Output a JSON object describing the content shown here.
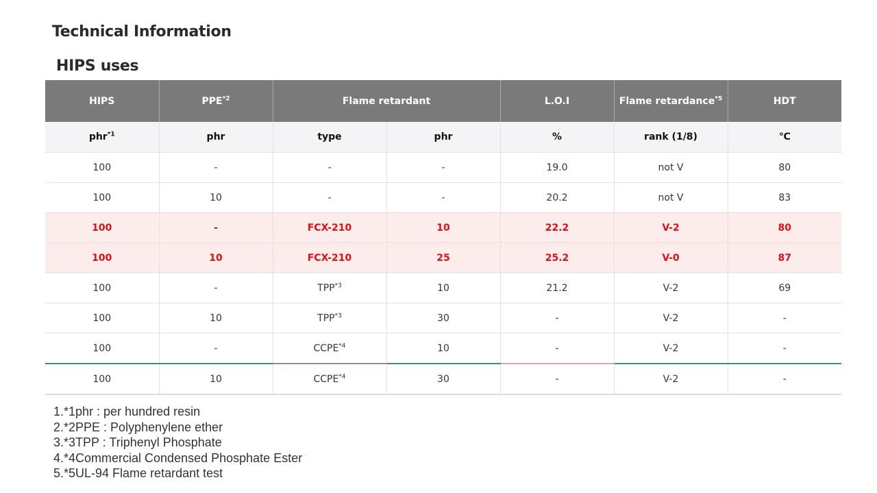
{
  "page_title": "Technical Information",
  "section_title": "HIPS uses",
  "table": {
    "header1": [
      {
        "label": "HIPS",
        "sup": ""
      },
      {
        "label": "PPE",
        "sup": "*2"
      },
      {
        "label": "Flame retardant",
        "sup": ""
      },
      {
        "label": "L.O.I",
        "sup": ""
      },
      {
        "label": "Flame retardance",
        "sup": "*5"
      },
      {
        "label": "HDT",
        "sup": ""
      }
    ],
    "header2": [
      {
        "label": "phr",
        "sup": "*1"
      },
      {
        "label": "phr",
        "sup": ""
      },
      {
        "label": "type",
        "sup": ""
      },
      {
        "label": "phr",
        "sup": ""
      },
      {
        "label": "%",
        "sup": ""
      },
      {
        "label": "rank (1/8)",
        "sup": ""
      },
      {
        "label": "℃",
        "sup": ""
      }
    ],
    "rows": [
      {
        "cells": [
          {
            "v": "100",
            "s": ""
          },
          {
            "v": "-",
            "s": ""
          },
          {
            "v": "-",
            "s": ""
          },
          {
            "v": "-",
            "s": ""
          },
          {
            "v": "19.0",
            "s": ""
          },
          {
            "v": "not V",
            "s": ""
          },
          {
            "v": "80",
            "s": ""
          }
        ]
      },
      {
        "cells": [
          {
            "v": "100",
            "s": ""
          },
          {
            "v": "10",
            "s": ""
          },
          {
            "v": "-",
            "s": ""
          },
          {
            "v": "-",
            "s": ""
          },
          {
            "v": "20.2",
            "s": ""
          },
          {
            "v": "not V",
            "s": ""
          },
          {
            "v": "83",
            "s": ""
          }
        ]
      },
      {
        "cells": [
          {
            "v": "100",
            "s": ""
          },
          {
            "v": "-",
            "s": ""
          },
          {
            "v": "FCX-210",
            "s": ""
          },
          {
            "v": "10",
            "s": ""
          },
          {
            "v": "22.2",
            "s": ""
          },
          {
            "v": "V-2",
            "s": ""
          },
          {
            "v": "80",
            "s": ""
          }
        ]
      },
      {
        "cells": [
          {
            "v": "100",
            "s": ""
          },
          {
            "v": "10",
            "s": ""
          },
          {
            "v": "FCX-210",
            "s": ""
          },
          {
            "v": "25",
            "s": ""
          },
          {
            "v": "25.2",
            "s": ""
          },
          {
            "v": "V-0",
            "s": ""
          },
          {
            "v": "87",
            "s": ""
          }
        ]
      },
      {
        "cells": [
          {
            "v": "100",
            "s": ""
          },
          {
            "v": "-",
            "s": ""
          },
          {
            "v": "TPP",
            "s": "*3"
          },
          {
            "v": "10",
            "s": ""
          },
          {
            "v": "21.2",
            "s": ""
          },
          {
            "v": "V-2",
            "s": ""
          },
          {
            "v": "69",
            "s": ""
          }
        ]
      },
      {
        "cells": [
          {
            "v": "100",
            "s": ""
          },
          {
            "v": "10",
            "s": ""
          },
          {
            "v": "TPP",
            "s": "*3"
          },
          {
            "v": "30",
            "s": ""
          },
          {
            "v": "-",
            "s": ""
          },
          {
            "v": "V-2",
            "s": ""
          },
          {
            "v": "-",
            "s": ""
          }
        ]
      },
      {
        "cells": [
          {
            "v": "100",
            "s": ""
          },
          {
            "v": "-",
            "s": ""
          },
          {
            "v": "CCPE",
            "s": "*4"
          },
          {
            "v": "10",
            "s": ""
          },
          {
            "v": "-",
            "s": ""
          },
          {
            "v": "V-2",
            "s": ""
          },
          {
            "v": "-",
            "s": ""
          }
        ]
      },
      {
        "cells": [
          {
            "v": "100",
            "s": ""
          },
          {
            "v": "10",
            "s": ""
          },
          {
            "v": "CCPE",
            "s": "*4"
          },
          {
            "v": "30",
            "s": ""
          },
          {
            "v": "-",
            "s": ""
          },
          {
            "v": "V-2",
            "s": ""
          },
          {
            "v": "-",
            "s": ""
          }
        ]
      }
    ]
  },
  "notes": [
    "1.*1phr : per hundred resin",
    "2.*2PPE :  Polyphenylene ether",
    "3.*3TPP : Triphenyl Phosphate",
    "4.*4Commercial Condensed Phosphate Ester",
    "5.*5UL-94 Flame retardant test"
  ],
  "colors": {
    "header_bg": "#7a7a7a",
    "subheader_bg": "#f4f4f7",
    "highlight_bg": "#fdecec",
    "highlight_text": "#e01010",
    "accent_line": "#2a9a82"
  }
}
